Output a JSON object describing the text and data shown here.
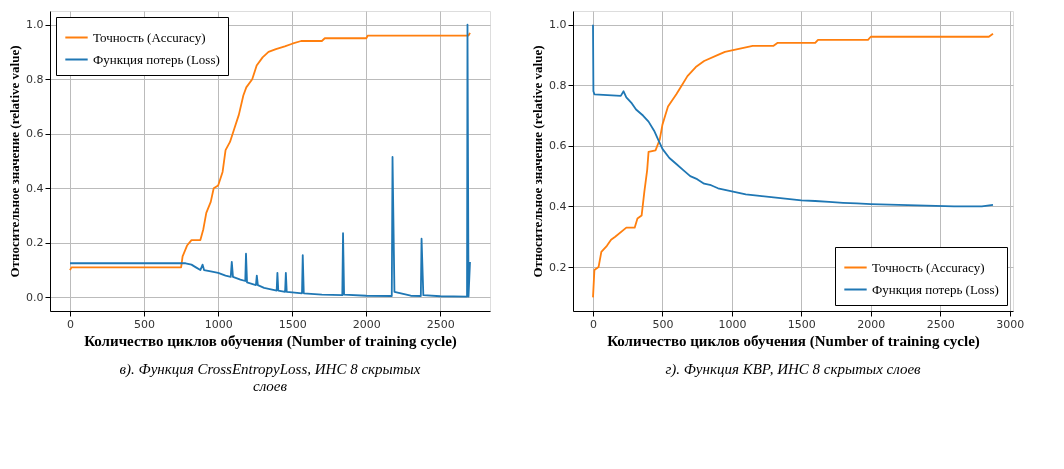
{
  "chart_data": [
    {
      "type": "line",
      "xlabel": "Количество циклов обучения (Number of training cycle)",
      "ylabel": "Относительное значение (relative value)",
      "annotations": [
        "в). Функция CrossEntropyLoss, ИНС 8 скрытых слоев"
      ],
      "xlim": [
        -135,
        2835
      ],
      "ylim": [
        -0.05,
        1.05
      ],
      "xticks": [
        0,
        500,
        1000,
        1500,
        2000,
        2500
      ],
      "yticks": [
        {
          "value": 0,
          "label": "0.0"
        },
        {
          "value": 0.2,
          "label": "0.2"
        },
        {
          "value": 0.4,
          "label": "0.4"
        },
        {
          "value": 0.6,
          "label": "0.6"
        },
        {
          "value": 0.8,
          "label": "0.8"
        },
        {
          "value": 1,
          "label": "1.0"
        }
      ],
      "grid": true,
      "legend": "top left",
      "marker": "none",
      "line_style": "solid",
      "series": [
        {
          "name": "Точность (Accuracy)",
          "color": "#ff7f0e",
          "x": [
            0,
            10,
            750,
            760,
            790,
            820,
            880,
            900,
            920,
            950,
            970,
            1000,
            1030,
            1050,
            1080,
            1110,
            1140,
            1170,
            1190,
            1230,
            1260,
            1300,
            1340,
            1390,
            1450,
            1500,
            1560,
            1700,
            1720,
            2000,
            2010,
            2690,
            2700
          ],
          "values": [
            0.1,
            0.11,
            0.11,
            0.15,
            0.19,
            0.21,
            0.21,
            0.25,
            0.31,
            0.35,
            0.4,
            0.41,
            0.46,
            0.54,
            0.57,
            0.62,
            0.67,
            0.74,
            0.77,
            0.8,
            0.85,
            0.88,
            0.9,
            0.91,
            0.92,
            0.93,
            0.94,
            0.94,
            0.95,
            0.95,
            0.96,
            0.96,
            0.97
          ]
        },
        {
          "name": "Функция потерь (Loss)",
          "color": "#1f77b4",
          "x": [
            0,
            780,
            820,
            850,
            880,
            895,
            905,
            950,
            1000,
            1050,
            1085,
            1092,
            1100,
            1150,
            1183,
            1188,
            1195,
            1255,
            1261,
            1268,
            1310,
            1395,
            1400,
            1406,
            1452,
            1457,
            1463,
            1500,
            1566,
            1571,
            1578,
            1700,
            1838,
            1843,
            1850,
            2000,
            2172,
            2177,
            2190,
            2300,
            2368,
            2373,
            2385,
            2500,
            2680,
            2683,
            2690,
            2700
          ],
          "values": [
            0.125,
            0.125,
            0.12,
            0.11,
            0.1,
            0.12,
            0.1,
            0.095,
            0.09,
            0.08,
            0.075,
            0.13,
            0.075,
            0.065,
            0.06,
            0.16,
            0.055,
            0.045,
            0.08,
            0.045,
            0.035,
            0.025,
            0.09,
            0.025,
            0.02,
            0.09,
            0.02,
            0.018,
            0.015,
            0.155,
            0.015,
            0.01,
            0.008,
            0.235,
            0.01,
            0.006,
            0.005,
            0.515,
            0.02,
            0.006,
            0.005,
            0.215,
            0.008,
            0.004,
            0.003,
            1.0,
            0.003,
            0.13
          ]
        }
      ]
    },
    {
      "type": "line",
      "xlabel": "Количество циклов обучения (Number of training cycle)",
      "ylabel": "Относительное значение (relative value)",
      "annotations": [
        "г). Функция КВР, ИНС 8 скрытых слоев"
      ],
      "xlim": [
        -144,
        3024
      ],
      "ylim": [
        0.055,
        1.045
      ],
      "xticks": [
        0,
        500,
        1000,
        1500,
        2000,
        2500,
        3000
      ],
      "yticks": [
        0.2,
        0.4,
        0.6,
        0.8,
        {
          "value": 1,
          "label": "1.0"
        }
      ],
      "grid": true,
      "legend": "bottom right",
      "marker": "none",
      "line_style": "solid",
      "series": [
        {
          "name": "Точность (Accuracy)",
          "color": "#ff7f0e",
          "x": [
            0,
            10,
            40,
            60,
            100,
            130,
            160,
            240,
            300,
            320,
            350,
            370,
            390,
            400,
            450,
            480,
            500,
            520,
            540,
            600,
            640,
            680,
            740,
            800,
            900,
            950,
            1050,
            1150,
            1300,
            1330,
            1600,
            1620,
            1980,
            2000,
            2850,
            2880
          ],
          "values": [
            0.1,
            0.19,
            0.2,
            0.25,
            0.27,
            0.29,
            0.3,
            0.33,
            0.33,
            0.36,
            0.37,
            0.45,
            0.52,
            0.58,
            0.585,
            0.62,
            0.67,
            0.7,
            0.73,
            0.77,
            0.8,
            0.83,
            0.86,
            0.88,
            0.9,
            0.91,
            0.92,
            0.93,
            0.93,
            0.94,
            0.94,
            0.95,
            0.95,
            0.96,
            0.96,
            0.97
          ]
        },
        {
          "name": "Функция потерь (Loss)",
          "color": "#1f77b4",
          "x": [
            0,
            3,
            10,
            200,
            220,
            240,
            280,
            310,
            360,
            400,
            440,
            470,
            500,
            550,
            600,
            650,
            700,
            750,
            800,
            850,
            900,
            950,
            1000,
            1100,
            1200,
            1300,
            1400,
            1500,
            1600,
            1700,
            1800,
            1900,
            2000,
            2200,
            2400,
            2600,
            2800,
            2880
          ],
          "values": [
            1.0,
            0.78,
            0.77,
            0.765,
            0.78,
            0.76,
            0.74,
            0.72,
            0.7,
            0.68,
            0.65,
            0.62,
            0.59,
            0.56,
            0.54,
            0.52,
            0.5,
            0.49,
            0.475,
            0.47,
            0.46,
            0.455,
            0.45,
            0.44,
            0.435,
            0.43,
            0.425,
            0.42,
            0.418,
            0.415,
            0.412,
            0.41,
            0.408,
            0.405,
            0.403,
            0.4,
            0.4,
            0.405
          ]
        }
      ]
    }
  ]
}
